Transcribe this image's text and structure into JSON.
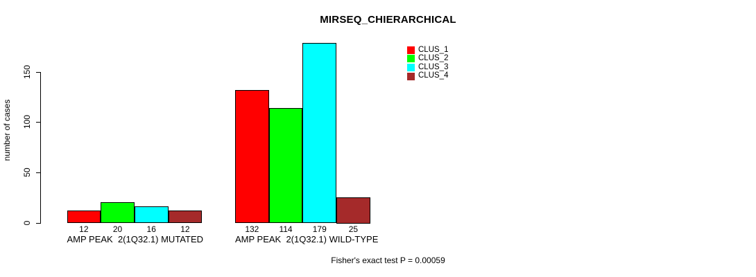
{
  "title": "MIRSEQ_CHIERARCHICAL",
  "y_axis": {
    "label": "number of cases"
  },
  "caption": "Fisher's exact test P = 0.00059",
  "legend": {
    "items": [
      {
        "label": "CLUS_1",
        "color": "#ff0000"
      },
      {
        "label": "CLUS_2",
        "color": "#00ff00"
      },
      {
        "label": "CLUS_3",
        "color": "#00ffff"
      },
      {
        "label": "CLUS_4",
        "color": "#a52a2a"
      }
    ]
  },
  "chart_data": {
    "type": "bar",
    "title": "MIRSEQ_CHIERARCHICAL",
    "xlabel": "",
    "ylabel": "number of cases",
    "ylim": [
      0,
      185
    ],
    "yticks": [
      0,
      50,
      100,
      150
    ],
    "grid": false,
    "legend_position": "top-right",
    "categories": [
      "AMP PEAK  2(1Q32.1) MUTATED",
      "AMP PEAK  2(1Q32.1) WILD-TYPE"
    ],
    "series": [
      {
        "name": "CLUS_1",
        "color": "#ff0000",
        "values": [
          12,
          132
        ]
      },
      {
        "name": "CLUS_2",
        "color": "#00ff00",
        "values": [
          20,
          114
        ]
      },
      {
        "name": "CLUS_3",
        "color": "#00ffff",
        "values": [
          16,
          179
        ]
      },
      {
        "name": "CLUS_4",
        "color": "#a52a2a",
        "values": [
          12,
          25
        ]
      }
    ],
    "bar_value_labels": [
      [
        12,
        20,
        16,
        12
      ],
      [
        132,
        114,
        179,
        25
      ]
    ],
    "annotation": "Fisher's exact test P = 0.00059"
  }
}
